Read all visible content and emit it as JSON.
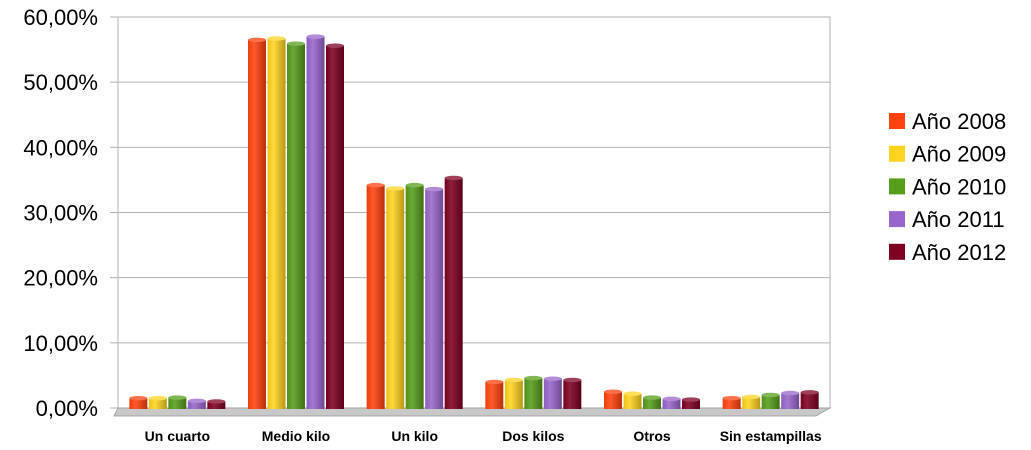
{
  "chart_data": {
    "type": "bar",
    "title": "",
    "xlabel": "",
    "ylabel": "",
    "categories": [
      "Un cuarto",
      "Medio kilo",
      "Un kilo",
      "Dos kilos",
      "Otros",
      "Sin estampillas"
    ],
    "y_ticks": [
      "0,00%",
      "10,00%",
      "20,00%",
      "30,00%",
      "40,00%",
      "50,00%",
      "60,00%"
    ],
    "ylim": [
      0,
      60
    ],
    "grid": true,
    "legend_position": "right",
    "series": [
      {
        "name": "Año 2008",
        "color": "#ff420e",
        "values": [
          1.5,
          56.5,
          34.2,
          4.0,
          2.5,
          1.5
        ]
      },
      {
        "name": "Año 2009",
        "color": "#ffd320",
        "values": [
          1.5,
          56.7,
          33.7,
          4.3,
          2.2,
          1.7
        ]
      },
      {
        "name": "Año 2010",
        "color": "#579d1c",
        "values": [
          1.6,
          55.9,
          34.2,
          4.6,
          1.6,
          2.0
        ]
      },
      {
        "name": "Año 2011",
        "color": "#9966cc",
        "values": [
          1.1,
          57.0,
          33.6,
          4.5,
          1.4,
          2.3
        ]
      },
      {
        "name": "Año 2012",
        "color": "#7e0021",
        "values": [
          1.0,
          55.6,
          35.3,
          4.3,
          1.3,
          2.4
        ]
      }
    ]
  }
}
